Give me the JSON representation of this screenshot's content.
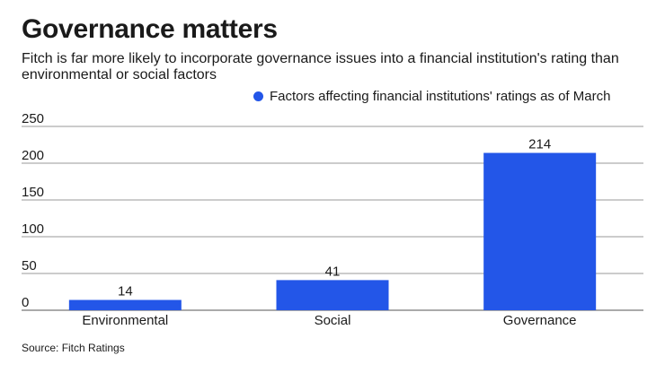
{
  "header": {
    "title": "Governance matters",
    "subtitle": "Fitch is far more likely to incorporate governance issues into a financial institution's rating than environmental or social factors"
  },
  "footer": {
    "source": "Source: Fitch Ratings"
  },
  "colors": {
    "bar": "#2356e8",
    "grid": "#9a9a9a",
    "text": "#1a1a1a"
  },
  "chart_data": {
    "type": "bar",
    "title": "Governance matters",
    "categories": [
      "Environmental",
      "Social",
      "Governance"
    ],
    "series": [
      {
        "name": "Factors affecting financial institutions' ratings as of March",
        "values": [
          14,
          41,
          214
        ]
      }
    ],
    "data_labels": [
      "14",
      "41",
      "214"
    ],
    "yticks": [
      0,
      50,
      100,
      150,
      200,
      250
    ],
    "ytick_labels": [
      "0",
      "50",
      "100",
      "150",
      "200",
      "250"
    ],
    "ylim": [
      0,
      250
    ],
    "xlabel": "",
    "ylabel": "",
    "grid": true,
    "legend_position": "top-right"
  }
}
